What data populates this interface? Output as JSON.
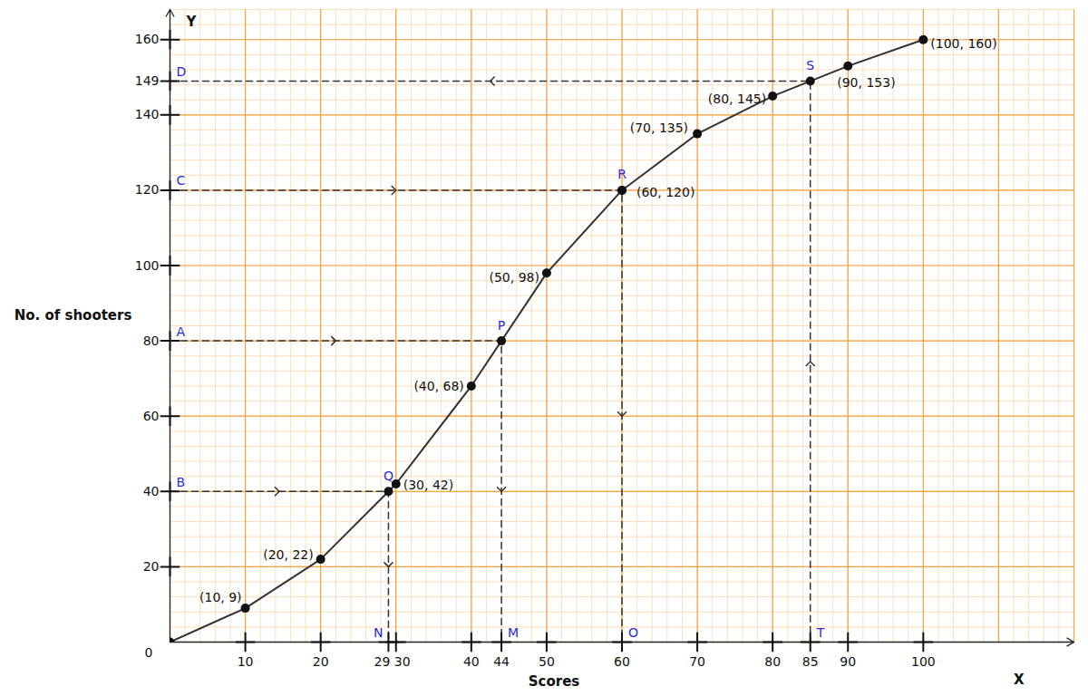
{
  "chart_data": {
    "type": "line",
    "xlabel": "Scores",
    "ylabel": "No. of shooters",
    "axis_names": {
      "x": "X",
      "y": "Y"
    },
    "x": [
      0,
      10,
      20,
      30,
      40,
      50,
      60,
      70,
      80,
      90,
      100
    ],
    "values": [
      0,
      9,
      22,
      42,
      68,
      98,
      120,
      135,
      145,
      153,
      160
    ],
    "value_labels": [
      null,
      "(10, 9)",
      "(20, 22)",
      "(30, 42)",
      "(40, 68)",
      "(50, 98)",
      "(60, 120)",
      "(70, 135)",
      "(80, 145)",
      "(90, 153)",
      "(100, 160)"
    ],
    "data_labels": true,
    "marker": "circle",
    "color": "#333333",
    "xlim": [
      0,
      120
    ],
    "ylim": [
      0,
      168
    ],
    "xticks": [
      0,
      10,
      20,
      29,
      30,
      40,
      44,
      50,
      60,
      70,
      80,
      85,
      90,
      100
    ],
    "yticks": [
      20,
      40,
      60,
      80,
      100,
      120,
      140,
      149,
      160
    ],
    "grid": true,
    "annotations": [
      {
        "x": 44,
        "y": 80,
        "y_label": "A",
        "point_label": "P",
        "x_label": "M",
        "from": "y"
      },
      {
        "x": 29,
        "y": 40,
        "y_label": "B",
        "point_label": "Q",
        "x_label": "N",
        "from": "y"
      },
      {
        "x": 60,
        "y": 120,
        "y_label": "C",
        "point_label": "R",
        "x_label": "O",
        "from": "y"
      },
      {
        "x": 85,
        "y": 149,
        "y_label": "D",
        "point_label": "S",
        "x_label": "T",
        "from": "x"
      }
    ]
  }
}
